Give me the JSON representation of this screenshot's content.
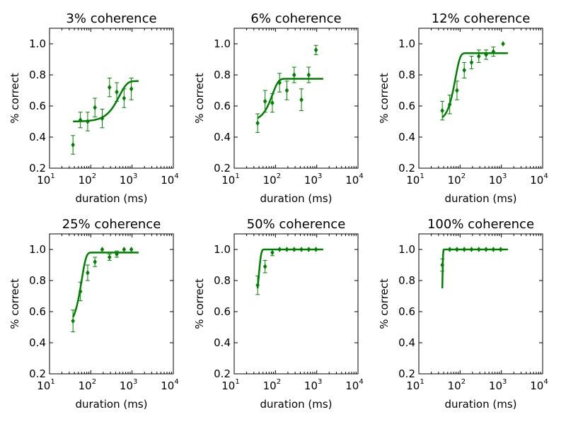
{
  "colors": {
    "series": "#008000",
    "axes": "#000000",
    "background": "#ffffff"
  },
  "chart_data": [
    {
      "type": "line",
      "title": "3% coherence",
      "xlabel": "duration (ms)",
      "ylabel": "% correct",
      "xscale": "log",
      "xlim": [
        10,
        10000
      ],
      "ylim": [
        0.2,
        1.1
      ],
      "yticks": [
        "0.2",
        "0.4",
        "0.6",
        "0.8",
        "1.0"
      ],
      "xticks": [
        "10",
        "10",
        "10",
        "10"
      ],
      "xtick_exponents": [
        "1",
        "2",
        "3",
        "4"
      ],
      "points": [
        {
          "x": 37,
          "y": 0.35,
          "err": 0.06
        },
        {
          "x": 56,
          "y": 0.51,
          "err": 0.05
        },
        {
          "x": 84,
          "y": 0.5,
          "err": 0.06
        },
        {
          "x": 126,
          "y": 0.59,
          "err": 0.06
        },
        {
          "x": 189,
          "y": 0.52,
          "err": 0.06
        },
        {
          "x": 284,
          "y": 0.72,
          "err": 0.06
        },
        {
          "x": 426,
          "y": 0.69,
          "err": 0.06
        },
        {
          "x": 640,
          "y": 0.65,
          "err": 0.06
        },
        {
          "x": 960,
          "y": 0.71,
          "err": 0.07
        }
      ],
      "fit": {
        "x0": 37,
        "x1": 1440,
        "min": 0.5,
        "max": 0.76,
        "x50": 420,
        "k": 2.3
      }
    },
    {
      "type": "line",
      "title": "6% coherence",
      "xlabel": "duration (ms)",
      "ylabel": "% correct",
      "xscale": "log",
      "xlim": [
        10,
        10000
      ],
      "ylim": [
        0.2,
        1.1
      ],
      "yticks": [
        "0.2",
        "0.4",
        "0.6",
        "0.8",
        "1.0"
      ],
      "xticks": [
        "10",
        "10",
        "10",
        "10"
      ],
      "xtick_exponents": [
        "1",
        "2",
        "3",
        "4"
      ],
      "points": [
        {
          "x": 37,
          "y": 0.49,
          "err": 0.06
        },
        {
          "x": 56,
          "y": 0.63,
          "err": 0.07
        },
        {
          "x": 84,
          "y": 0.62,
          "err": 0.06
        },
        {
          "x": 126,
          "y": 0.75,
          "err": 0.06
        },
        {
          "x": 189,
          "y": 0.7,
          "err": 0.06
        },
        {
          "x": 284,
          "y": 0.8,
          "err": 0.05
        },
        {
          "x": 426,
          "y": 0.64,
          "err": 0.07
        },
        {
          "x": 640,
          "y": 0.8,
          "err": 0.05
        },
        {
          "x": 960,
          "y": 0.96,
          "err": 0.03
        }
      ],
      "fit": {
        "x0": 37,
        "x1": 1440,
        "min": 0.5,
        "max": 0.775,
        "x50": 75,
        "k": 3.0
      }
    },
    {
      "type": "line",
      "title": "12% coherence",
      "xlabel": "duration (ms)",
      "ylabel": "% correct",
      "xscale": "log",
      "xlim": [
        10,
        10000
      ],
      "ylim": [
        0.2,
        1.1
      ],
      "yticks": [
        "0.2",
        "0.4",
        "0.6",
        "0.8",
        "1.0"
      ],
      "xticks": [
        "10",
        "10",
        "10",
        "10"
      ],
      "xtick_exponents": [
        "1",
        "2",
        "3",
        "4"
      ],
      "points": [
        {
          "x": 37,
          "y": 0.57,
          "err": 0.06
        },
        {
          "x": 56,
          "y": 0.61,
          "err": 0.06
        },
        {
          "x": 84,
          "y": 0.7,
          "err": 0.06
        },
        {
          "x": 126,
          "y": 0.83,
          "err": 0.05
        },
        {
          "x": 189,
          "y": 0.88,
          "err": 0.04
        },
        {
          "x": 284,
          "y": 0.92,
          "err": 0.04
        },
        {
          "x": 426,
          "y": 0.93,
          "err": 0.03
        },
        {
          "x": 640,
          "y": 0.95,
          "err": 0.03
        },
        {
          "x": 1100,
          "y": 1.0,
          "err": 0.0
        }
      ],
      "fit": {
        "x0": 37,
        "x1": 1440,
        "min": 0.5,
        "max": 0.94,
        "x50": 70,
        "k": 3.8
      }
    },
    {
      "type": "line",
      "title": "25% coherence",
      "xlabel": "duration (ms)",
      "ylabel": "% correct",
      "xscale": "log",
      "xlim": [
        10,
        10000
      ],
      "ylim": [
        0.2,
        1.1
      ],
      "yticks": [
        "0.2",
        "0.4",
        "0.6",
        "0.8",
        "1.0"
      ],
      "xticks": [
        "10",
        "10",
        "10",
        "10"
      ],
      "xtick_exponents": [
        "1",
        "2",
        "3",
        "4"
      ],
      "points": [
        {
          "x": 37,
          "y": 0.54,
          "err": 0.07
        },
        {
          "x": 56,
          "y": 0.73,
          "err": 0.06
        },
        {
          "x": 84,
          "y": 0.85,
          "err": 0.05
        },
        {
          "x": 126,
          "y": 0.92,
          "err": 0.03
        },
        {
          "x": 189,
          "y": 1.0,
          "err": 0.0
        },
        {
          "x": 284,
          "y": 0.95,
          "err": 0.02
        },
        {
          "x": 426,
          "y": 0.97,
          "err": 0.02
        },
        {
          "x": 640,
          "y": 1.0,
          "err": 0.0
        },
        {
          "x": 960,
          "y": 1.0,
          "err": 0.0
        }
      ],
      "fit": {
        "x0": 37,
        "x1": 1440,
        "min": 0.5,
        "max": 0.98,
        "x50": 55,
        "k": 4.0
      }
    },
    {
      "type": "line",
      "title": "50% coherence",
      "xlabel": "duration (ms)",
      "ylabel": "% correct",
      "xscale": "log",
      "xlim": [
        10,
        10000
      ],
      "ylim": [
        0.2,
        1.1
      ],
      "yticks": [
        "0.2",
        "0.4",
        "0.6",
        "0.8",
        "1.0"
      ],
      "xticks": [
        "10",
        "10",
        "10",
        "10"
      ],
      "xtick_exponents": [
        "1",
        "2",
        "3",
        "4"
      ],
      "points": [
        {
          "x": 37,
          "y": 0.77,
          "err": 0.06
        },
        {
          "x": 56,
          "y": 0.89,
          "err": 0.04
        },
        {
          "x": 84,
          "y": 0.98,
          "err": 0.02
        },
        {
          "x": 126,
          "y": 1.0,
          "err": 0.0
        },
        {
          "x": 189,
          "y": 1.0,
          "err": 0.0
        },
        {
          "x": 284,
          "y": 1.0,
          "err": 0.0
        },
        {
          "x": 426,
          "y": 1.0,
          "err": 0.0
        },
        {
          "x": 640,
          "y": 1.0,
          "err": 0.0
        },
        {
          "x": 960,
          "y": 1.0,
          "err": 0.0
        }
      ],
      "fit": {
        "x0": 37,
        "x1": 1440,
        "min": 0.5,
        "max": 1.0,
        "x50": 37,
        "k": 7.0
      }
    },
    {
      "type": "line",
      "title": "100% coherence",
      "xlabel": "duration (ms)",
      "ylabel": "% correct",
      "xscale": "log",
      "xlim": [
        10,
        10000
      ],
      "ylim": [
        0.2,
        1.1
      ],
      "yticks": [
        "0.2",
        "0.4",
        "0.6",
        "0.8",
        "1.0"
      ],
      "xticks": [
        "10",
        "10",
        "10",
        "10"
      ],
      "xtick_exponents": [
        "1",
        "2",
        "3",
        "4"
      ],
      "points": [
        {
          "x": 37,
          "y": 0.9,
          "err": 0.04
        },
        {
          "x": 56,
          "y": 1.0,
          "err": 0.0
        },
        {
          "x": 84,
          "y": 1.0,
          "err": 0.0
        },
        {
          "x": 126,
          "y": 1.0,
          "err": 0.0
        },
        {
          "x": 189,
          "y": 1.0,
          "err": 0.0
        },
        {
          "x": 284,
          "y": 1.0,
          "err": 0.0
        },
        {
          "x": 426,
          "y": 1.0,
          "err": 0.0
        },
        {
          "x": 640,
          "y": 1.0,
          "err": 0.0
        },
        {
          "x": 960,
          "y": 1.0,
          "err": 0.0
        }
      ],
      "fit": {
        "x0": 37,
        "x1": 1440,
        "min": 0.5,
        "max": 1.0,
        "x50": 37,
        "k": 30.0
      }
    }
  ]
}
